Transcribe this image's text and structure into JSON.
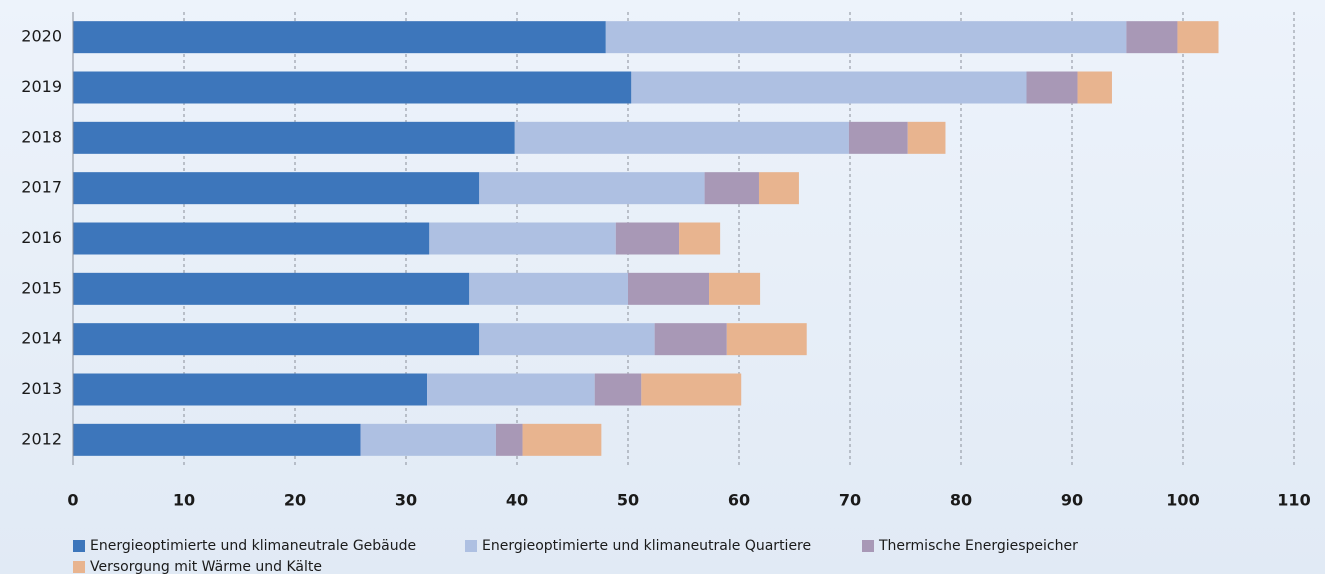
{
  "chart_data": {
    "type": "stacked-barh",
    "categories": [
      "2020",
      "2019",
      "2018",
      "2017",
      "2016",
      "2015",
      "2014",
      "2013",
      "2012"
    ],
    "series": [
      {
        "name": "Energieoptimierte und klimaneutrale Gebäude",
        "color": "#3d76bb",
        "values": [
          48.0,
          50.3,
          39.8,
          36.6,
          32.1,
          35.7,
          36.6,
          31.9,
          25.9
        ]
      },
      {
        "name": "Energieoptimierte und klimaneutrale Quartiere",
        "color": "#aec0e2",
        "values": [
          46.9,
          35.6,
          30.1,
          20.3,
          16.8,
          14.3,
          15.8,
          15.1,
          12.2
        ]
      },
      {
        "name": "Thermische Energiespeicher",
        "color": "#a898b6",
        "values": [
          4.6,
          4.6,
          5.3,
          4.9,
          5.7,
          7.3,
          6.5,
          4.2,
          2.4
        ]
      },
      {
        "name": "Versorgung mit Wärme und Kälte",
        "color": "#e8b48f",
        "values": [
          3.7,
          3.1,
          3.4,
          3.6,
          3.7,
          4.6,
          7.2,
          9.0,
          7.1
        ]
      }
    ],
    "xlim": [
      0,
      110
    ],
    "xticks": [
      0,
      10,
      20,
      30,
      40,
      50,
      60,
      70,
      80,
      90,
      100,
      110
    ],
    "grid": true
  }
}
